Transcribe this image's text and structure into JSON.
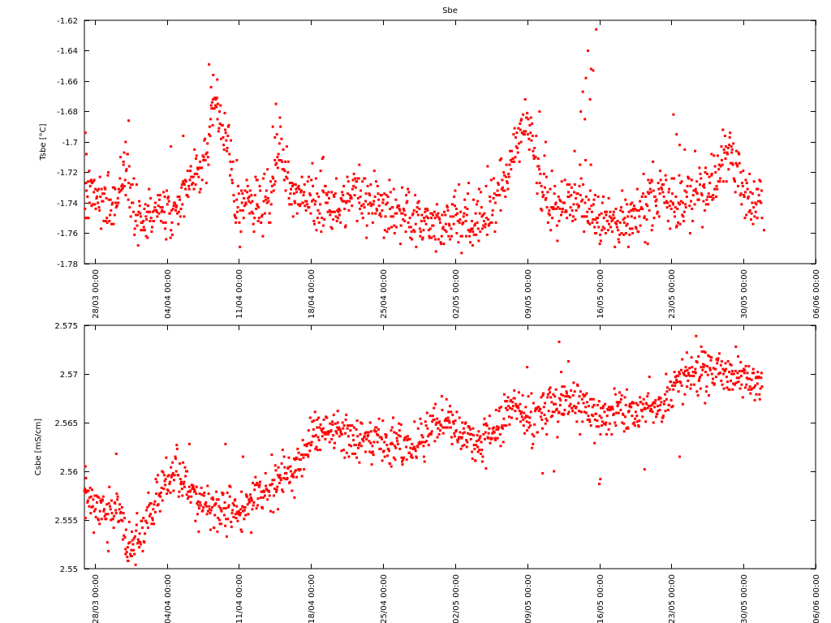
{
  "chart_data": [
    {
      "type": "scatter",
      "title": "Sbe",
      "xlabel": "",
      "ylabel": "Tsbe [°C]",
      "ylim": [
        -1.78,
        -1.62
      ],
      "yticks": [
        -1.78,
        -1.76,
        -1.74,
        -1.72,
        -1.7,
        -1.68,
        -1.66,
        -1.64,
        -1.62
      ],
      "ytick_labels": [
        "-1.78",
        "-1.76",
        "-1.74",
        "-1.72",
        "-1.7",
        "-1.68",
        "-1.66",
        "-1.64",
        "-1.62"
      ],
      "x_unit": "days since 2010-03-27 00:00",
      "xlim": [
        0,
        71
      ],
      "xticks": [
        1,
        8,
        15,
        22,
        29,
        36,
        43,
        50,
        57,
        64,
        71
      ],
      "xtick_labels": [
        "28/03 00:00",
        "04/04 00:00",
        "11/04 00:00",
        "18/04 00:00",
        "25/04 00:00",
        "02/05 00:00",
        "09/05 00:00",
        "16/05 00:00",
        "23/05 00:00",
        "30/05 00:00",
        "06/06 00:00"
      ],
      "grid": false,
      "legend": "none",
      "marker_color": "#ff0000",
      "trend": [
        [
          0.0,
          -1.735
        ],
        [
          1.0,
          -1.738
        ],
        [
          2.0,
          -1.738
        ],
        [
          3.0,
          -1.742
        ],
        [
          3.5,
          -1.725
        ],
        [
          4.0,
          -1.72
        ],
        [
          4.5,
          -1.73
        ],
        [
          5.0,
          -1.752
        ],
        [
          6.0,
          -1.748
        ],
        [
          7.0,
          -1.745
        ],
        [
          8.0,
          -1.745
        ],
        [
          9.0,
          -1.742
        ],
        [
          10.0,
          -1.73
        ],
        [
          11.0,
          -1.72
        ],
        [
          11.5,
          -1.715
        ],
        [
          12.0,
          -1.7
        ],
        [
          12.5,
          -1.675
        ],
        [
          13.0,
          -1.68
        ],
        [
          13.5,
          -1.69
        ],
        [
          14.0,
          -1.7
        ],
        [
          14.5,
          -1.735
        ],
        [
          15.0,
          -1.74
        ],
        [
          16.0,
          -1.74
        ],
        [
          17.0,
          -1.743
        ],
        [
          18.0,
          -1.74
        ],
        [
          18.5,
          -1.72
        ],
        [
          19.0,
          -1.7
        ],
        [
          19.5,
          -1.715
        ],
        [
          20.0,
          -1.73
        ],
        [
          21.0,
          -1.735
        ],
        [
          22.0,
          -1.74
        ],
        [
          23.0,
          -1.742
        ],
        [
          24.0,
          -1.745
        ],
        [
          25.0,
          -1.74
        ],
        [
          26.0,
          -1.735
        ],
        [
          27.0,
          -1.738
        ],
        [
          28.0,
          -1.742
        ],
        [
          29.0,
          -1.745
        ],
        [
          30.0,
          -1.748
        ],
        [
          31.0,
          -1.745
        ],
        [
          32.0,
          -1.748
        ],
        [
          33.0,
          -1.752
        ],
        [
          34.0,
          -1.756
        ],
        [
          35.0,
          -1.752
        ],
        [
          36.0,
          -1.752
        ],
        [
          37.0,
          -1.755
        ],
        [
          38.0,
          -1.748
        ],
        [
          39.0,
          -1.745
        ],
        [
          40.0,
          -1.735
        ],
        [
          41.0,
          -1.725
        ],
        [
          41.5,
          -1.705
        ],
        [
          42.0,
          -1.7
        ],
        [
          42.5,
          -1.69
        ],
        [
          43.0,
          -1.685
        ],
        [
          43.5,
          -1.7
        ],
        [
          44.0,
          -1.72
        ],
        [
          44.5,
          -1.735
        ],
        [
          45.0,
          -1.738
        ],
        [
          46.0,
          -1.74
        ],
        [
          47.0,
          -1.738
        ],
        [
          48.0,
          -1.738
        ],
        [
          49.0,
          -1.745
        ],
        [
          50.0,
          -1.75
        ],
        [
          51.0,
          -1.755
        ],
        [
          52.0,
          -1.756
        ],
        [
          53.0,
          -1.752
        ],
        [
          54.0,
          -1.745
        ],
        [
          55.0,
          -1.735
        ],
        [
          56.0,
          -1.73
        ],
        [
          57.0,
          -1.74
        ],
        [
          58.0,
          -1.738
        ],
        [
          59.0,
          -1.732
        ],
        [
          60.0,
          -1.73
        ],
        [
          61.0,
          -1.735
        ],
        [
          61.5,
          -1.72
        ],
        [
          62.0,
          -1.71
        ],
        [
          62.5,
          -1.705
        ],
        [
          63.0,
          -1.712
        ],
        [
          63.5,
          -1.72
        ],
        [
          64.0,
          -1.738
        ],
        [
          65.0,
          -1.74
        ],
        [
          65.5,
          -1.735
        ],
        [
          66.0,
          -1.742
        ],
        [
          67.0,
          -1.745
        ],
        [
          68.0,
          -1.738
        ],
        [
          69.0,
          -1.738
        ],
        [
          70.0,
          -1.74
        ],
        [
          71.0,
          -1.74
        ]
      ],
      "noise": 0.009,
      "outliers": [
        [
          49.7,
          -1.626
        ],
        [
          48.9,
          -1.64
        ],
        [
          49.2,
          -1.652
        ],
        [
          49.4,
          -1.653
        ],
        [
          48.7,
          -1.658
        ],
        [
          48.4,
          -1.667
        ],
        [
          49.1,
          -1.672
        ],
        [
          48.2,
          -1.68
        ],
        [
          48.6,
          -1.685
        ],
        [
          12.1,
          -1.649
        ],
        [
          12.9,
          -1.659
        ],
        [
          12.3,
          -1.664
        ],
        [
          12.5,
          -1.672
        ],
        [
          18.6,
          -1.675
        ],
        [
          18.3,
          -1.69
        ],
        [
          18.5,
          -1.697
        ],
        [
          57.2,
          -1.682
        ],
        [
          57.5,
          -1.695
        ],
        [
          57.8,
          -1.702
        ],
        [
          58.3,
          -1.705
        ],
        [
          4.3,
          -1.686
        ],
        [
          4.0,
          -1.7
        ],
        [
          3.8,
          -1.713
        ],
        [
          0.1,
          -1.694
        ],
        [
          0.2,
          -1.708
        ],
        [
          14.8,
          -1.712
        ],
        [
          8.4,
          -1.703
        ],
        [
          9.6,
          -1.696
        ],
        [
          16.8,
          -1.725
        ],
        [
          23.2,
          -1.71
        ],
        [
          26.7,
          -1.715
        ],
        [
          44.2,
          -1.68
        ],
        [
          44.8,
          -1.7
        ],
        [
          47.6,
          -1.706
        ],
        [
          53.2,
          -1.757
        ],
        [
          55.1,
          -1.758
        ],
        [
          42.4,
          -1.7
        ],
        [
          60.9,
          -1.708
        ],
        [
          59.3,
          -1.706
        ],
        [
          6.0,
          -1.762
        ],
        [
          5.5,
          -1.758
        ],
        [
          33.7,
          -1.763
        ],
        [
          37.7,
          -1.768
        ],
        [
          49.6,
          -1.76
        ],
        [
          54.7,
          -1.767
        ],
        [
          60.2,
          -1.73
        ],
        [
          62.9,
          -1.705
        ],
        [
          66.0,
          -1.758
        ]
      ],
      "gaps": [],
      "x_end": 65.8,
      "count": 1300,
      "seed": 7,
      "rounding": 0.001
    },
    {
      "type": "scatter",
      "title": "",
      "xlabel": "",
      "ylabel": "Csbe [mS/cm]",
      "ylim": [
        2.55,
        2.575
      ],
      "yticks": [
        2.55,
        2.555,
        2.56,
        2.565,
        2.57,
        2.575
      ],
      "ytick_labels": [
        "2.55",
        "2.555",
        "2.56",
        "2.565",
        "2.57",
        "2.575"
      ],
      "x_unit": "days since 2010-03-27 00:00",
      "xlim": [
        0,
        71
      ],
      "xticks": [
        1,
        8,
        15,
        22,
        29,
        36,
        43,
        50,
        57,
        64,
        71
      ],
      "xtick_labels": [
        "28/03 00:00",
        "04/04 00:00",
        "11/04 00:00",
        "18/04 00:00",
        "25/04 00:00",
        "02/05 00:00",
        "09/05 00:00",
        "16/05 00:00",
        "23/05 00:00",
        "30/05 00:00",
        "06/06 00:00"
      ],
      "grid": false,
      "legend": "none",
      "marker_color": "#ff0000",
      "trend": [
        [
          0.0,
          2.559
        ],
        [
          0.5,
          2.5575
        ],
        [
          1.0,
          2.556
        ],
        [
          2.0,
          2.556
        ],
        [
          3.0,
          2.5558
        ],
        [
          3.5,
          2.5555
        ],
        [
          4.0,
          2.553
        ],
        [
          4.5,
          2.552
        ],
        [
          5.0,
          2.5525
        ],
        [
          5.5,
          2.5535
        ],
        [
          6.0,
          2.5545
        ],
        [
          7.0,
          2.557
        ],
        [
          8.0,
          2.559
        ],
        [
          9.0,
          2.5595
        ],
        [
          10.0,
          2.559
        ],
        [
          11.0,
          2.557
        ],
        [
          12.0,
          2.5565
        ],
        [
          13.0,
          2.556
        ],
        [
          14.0,
          2.556
        ],
        [
          15.0,
          2.5555
        ],
        [
          16.0,
          2.5575
        ],
        [
          17.0,
          2.558
        ],
        [
          18.0,
          2.5575
        ],
        [
          19.0,
          2.5595
        ],
        [
          20.0,
          2.56
        ],
        [
          21.0,
          2.5605
        ],
        [
          22.0,
          2.5635
        ],
        [
          23.0,
          2.5638
        ],
        [
          24.0,
          2.564
        ],
        [
          25.0,
          2.564
        ],
        [
          26.0,
          2.5635
        ],
        [
          27.0,
          2.5638
        ],
        [
          28.0,
          2.5632
        ],
        [
          29.0,
          2.5632
        ],
        [
          30.0,
          2.563
        ],
        [
          31.0,
          2.5625
        ],
        [
          32.0,
          2.563
        ],
        [
          33.0,
          2.5635
        ],
        [
          34.0,
          2.565
        ],
        [
          35.0,
          2.5652
        ],
        [
          36.0,
          2.5645
        ],
        [
          37.0,
          2.5635
        ],
        [
          38.0,
          2.5625
        ],
        [
          39.0,
          2.5635
        ],
        [
          40.0,
          2.5645
        ],
        [
          41.0,
          2.566
        ],
        [
          42.0,
          2.567
        ],
        [
          43.0,
          2.5655
        ],
        [
          44.0,
          2.5658
        ],
        [
          45.0,
          2.5665
        ],
        [
          46.0,
          2.567
        ],
        [
          47.0,
          2.5672
        ],
        [
          48.0,
          2.5668
        ],
        [
          49.0,
          2.566
        ],
        [
          50.0,
          2.566
        ],
        [
          51.0,
          2.5655
        ],
        [
          52.0,
          2.5665
        ],
        [
          53.0,
          2.566
        ],
        [
          54.0,
          2.5662
        ],
        [
          55.0,
          2.5665
        ],
        [
          56.0,
          2.5672
        ],
        [
          57.0,
          2.5685
        ],
        [
          58.0,
          2.5695
        ],
        [
          59.0,
          2.5698
        ],
        [
          60.0,
          2.5702
        ],
        [
          61.0,
          2.5703
        ],
        [
          62.0,
          2.57
        ],
        [
          63.0,
          2.5698
        ],
        [
          64.0,
          2.5695
        ],
        [
          65.0,
          2.5692
        ],
        [
          66.0,
          2.569
        ],
        [
          71.0,
          2.569
        ]
      ],
      "noise": 0.0011,
      "outliers": [
        [
          46.1,
          2.5733
        ],
        [
          59.4,
          2.5739
        ],
        [
          58.5,
          2.5722
        ],
        [
          59.9,
          2.5728
        ],
        [
          60.3,
          2.5722
        ],
        [
          47.0,
          2.5713
        ],
        [
          46.3,
          2.5702
        ],
        [
          43.0,
          2.5707
        ],
        [
          13.7,
          2.5628
        ],
        [
          3.1,
          2.5618
        ],
        [
          57.8,
          2.5615
        ],
        [
          54.4,
          2.5602
        ],
        [
          50.1,
          2.5592
        ],
        [
          50.0,
          2.5587
        ],
        [
          44.5,
          2.5598
        ],
        [
          35.5,
          2.5667
        ],
        [
          39.0,
          2.5603
        ],
        [
          4.0,
          2.5515
        ],
        [
          4.6,
          2.5513
        ],
        [
          4.2,
          2.5522
        ],
        [
          11.1,
          2.5538
        ],
        [
          12.6,
          2.5542
        ],
        [
          16.2,
          2.5537
        ],
        [
          17.3,
          2.5562
        ],
        [
          18.8,
          2.5561
        ],
        [
          20.4,
          2.5573
        ],
        [
          22.6,
          2.5645
        ],
        [
          24.6,
          2.5662
        ],
        [
          0.1,
          2.5605
        ],
        [
          0.1,
          2.5552
        ],
        [
          27.9,
          2.5607
        ],
        [
          29.8,
          2.5605
        ],
        [
          15.4,
          2.5615
        ],
        [
          15.2,
          2.554
        ],
        [
          44.4,
          2.566
        ],
        [
          45.6,
          2.56
        ],
        [
          38.3,
          2.5632
        ],
        [
          36.7,
          2.565
        ],
        [
          10.2,
          2.5628
        ],
        [
          13.3,
          2.556
        ]
      ],
      "gaps": [],
      "x_end": 65.8,
      "count": 1300,
      "seed": 11,
      "rounding": 0.0001
    }
  ]
}
